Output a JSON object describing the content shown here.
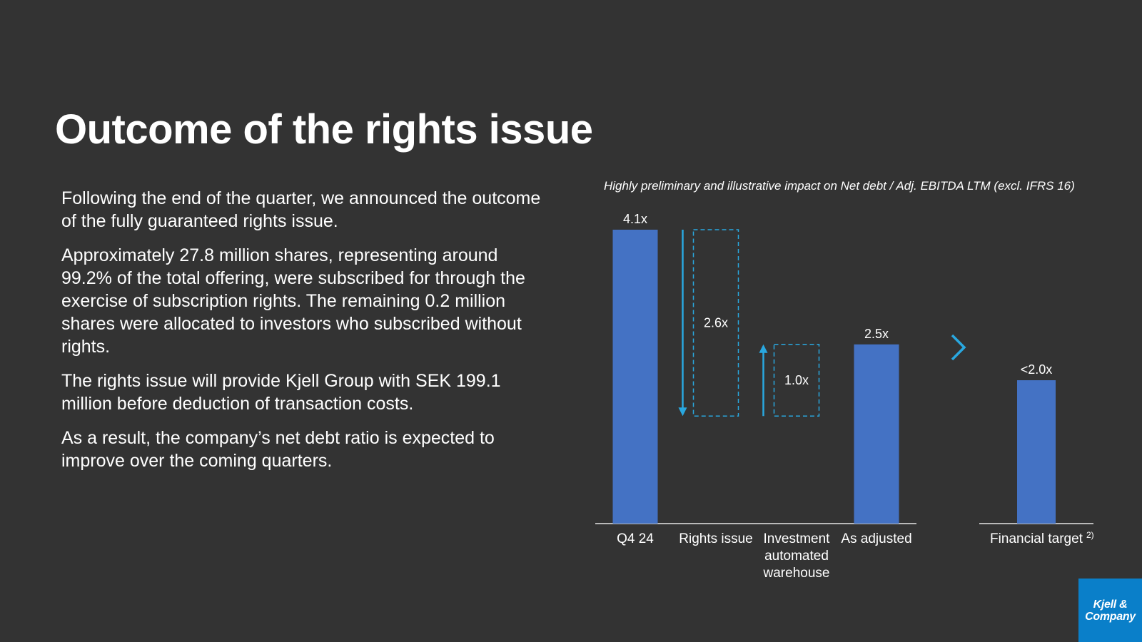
{
  "title": "Outcome of the rights issue",
  "paragraphs": [
    "Following the end of the quarter, we announced the outcome of the fully guaranteed rights issue.",
    "Approximately 27.8 million shares, representing around 99.2% of the total offering, were subscribed for through the exercise of subscription rights. The remaining 0.2 million shares were allocated to investors who subscribed without rights.",
    "The rights issue will provide Kjell Group with SEK 199.1 million before deduction of transaction costs.",
    "As a result, the company’s net debt ratio is expected to improve over the coming quarters."
  ],
  "logo": {
    "line1": "Kjell &",
    "line2": "Company"
  },
  "colors": {
    "bar": "#4472C4",
    "delta": "#29A8E0",
    "axis": "#E6E6E6",
    "background": "#333333"
  },
  "chart_data": {
    "type": "bar",
    "subtitle": "Highly preliminary and illustrative impact on Net debt / Adj. EBITDA LTM (excl. IFRS 16)",
    "categories": [
      {
        "label": [
          "Q4 24"
        ],
        "kind": "total",
        "value": 4.1,
        "value_label": "4.1x"
      },
      {
        "label": [
          "Rights issue"
        ],
        "kind": "decrease",
        "from": 4.1,
        "to": 1.5,
        "value": 2.6,
        "value_label": "2.6x"
      },
      {
        "label": [
          "Investment",
          "automated",
          "warehouse"
        ],
        "kind": "increase",
        "from": 1.5,
        "to": 2.5,
        "value": 1.0,
        "value_label": "1.0x"
      },
      {
        "label": [
          "As adjusted"
        ],
        "kind": "total",
        "value": 2.5,
        "value_label": "2.5x"
      }
    ],
    "target": {
      "label": "Financial target",
      "footnote": "2)",
      "value": 2.0,
      "value_label": "<2.0x"
    },
    "ylim": [
      0,
      4.1
    ]
  }
}
